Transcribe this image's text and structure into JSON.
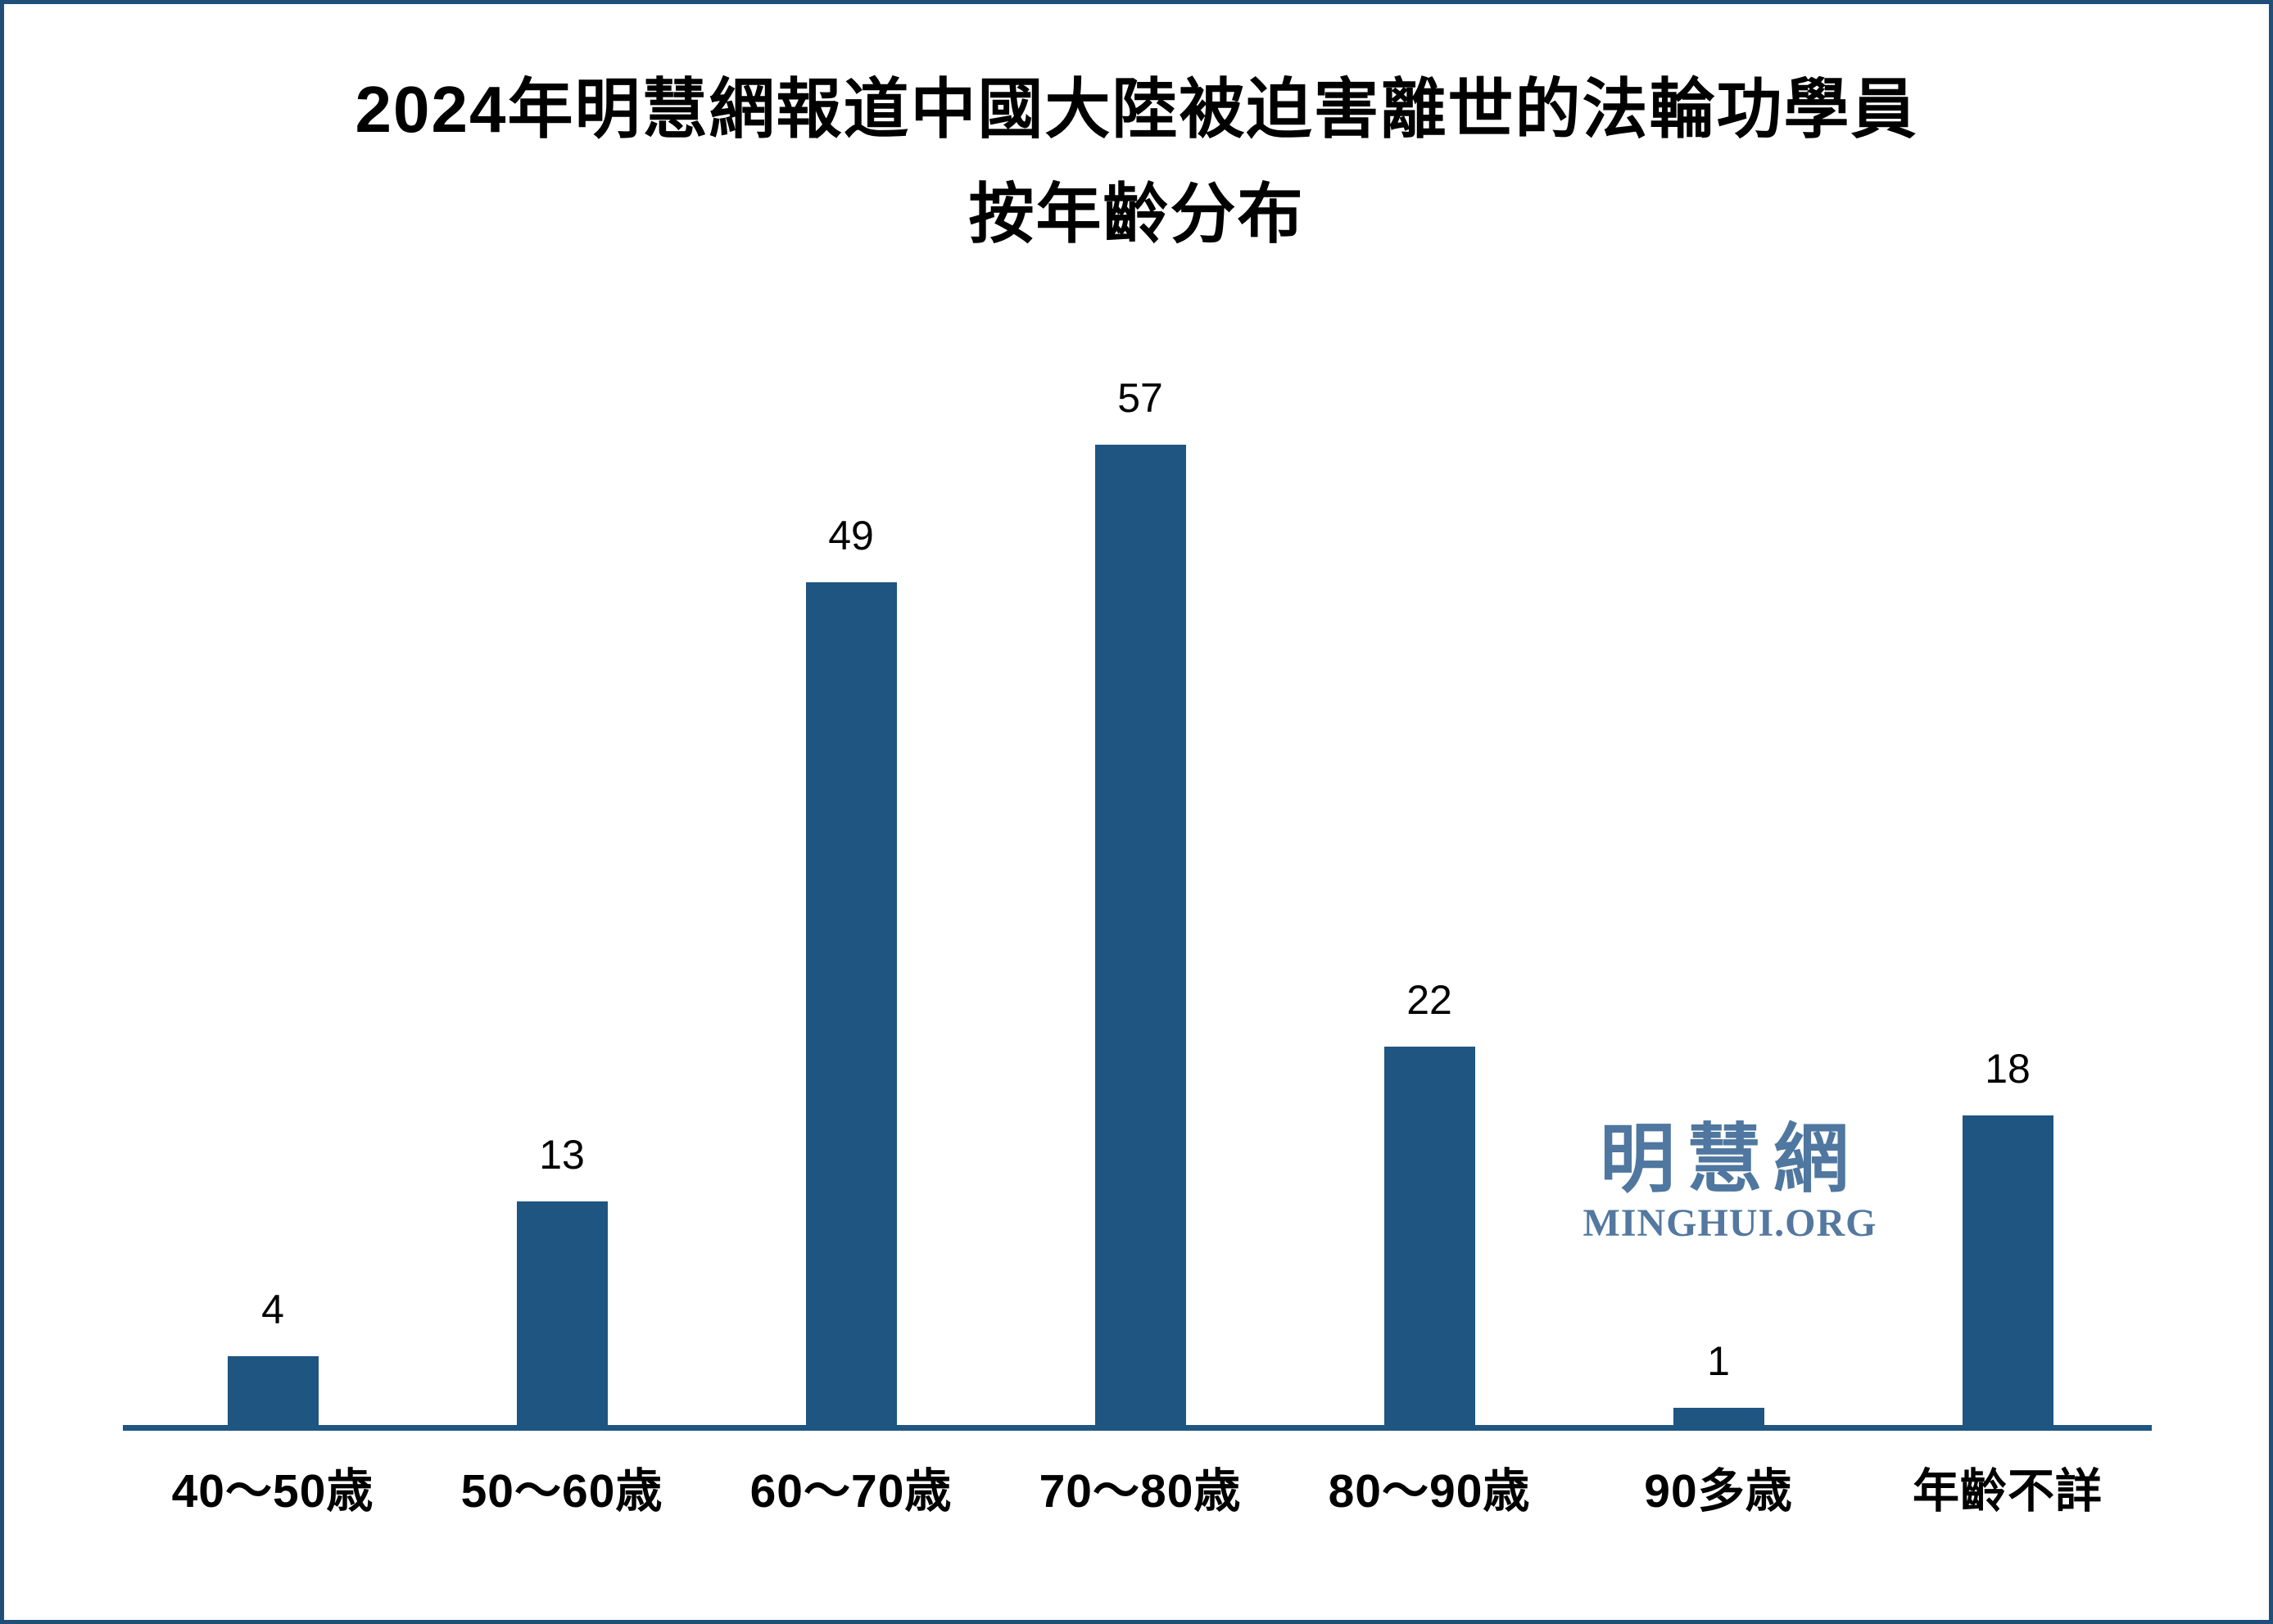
{
  "title": {
    "line1": "2024年明慧網報道中國大陸被迫害離世的法輪功學員",
    "line2": "按年齡分布"
  },
  "chart_data": {
    "type": "bar",
    "title": "2024年明慧網報道中國大陸被迫害離世的法輪功學員 按年齡分布",
    "categories": [
      "40～50歳",
      "50～60歳",
      "60～70歳",
      "70～80歳",
      "80～90歳",
      "90多歳",
      "年齡不詳"
    ],
    "values": [
      4,
      13,
      49,
      57,
      22,
      1,
      18
    ],
    "data_labels": [
      4,
      13,
      49,
      57,
      22,
      1,
      18
    ],
    "xlabel": "",
    "ylabel": "",
    "ylim": [
      0,
      60
    ],
    "grid": false,
    "legend": false,
    "y_axis_shown": false,
    "bar_color": "#1F5581",
    "axis_line_color": "#1F5581"
  },
  "watermark": {
    "cjk": "明慧網",
    "latin": "MINGHUI.ORG"
  },
  "colors": {
    "background": "#FFFFFF",
    "frame_border": "#1F4E79",
    "bar": "#1F5581",
    "axis_line": "#1F5581",
    "title_text": "#000000",
    "value_label_text": "#000000",
    "tick_label_text": "#000000",
    "watermark_cjk": "#4F779F",
    "watermark_latin": "#54789F"
  }
}
